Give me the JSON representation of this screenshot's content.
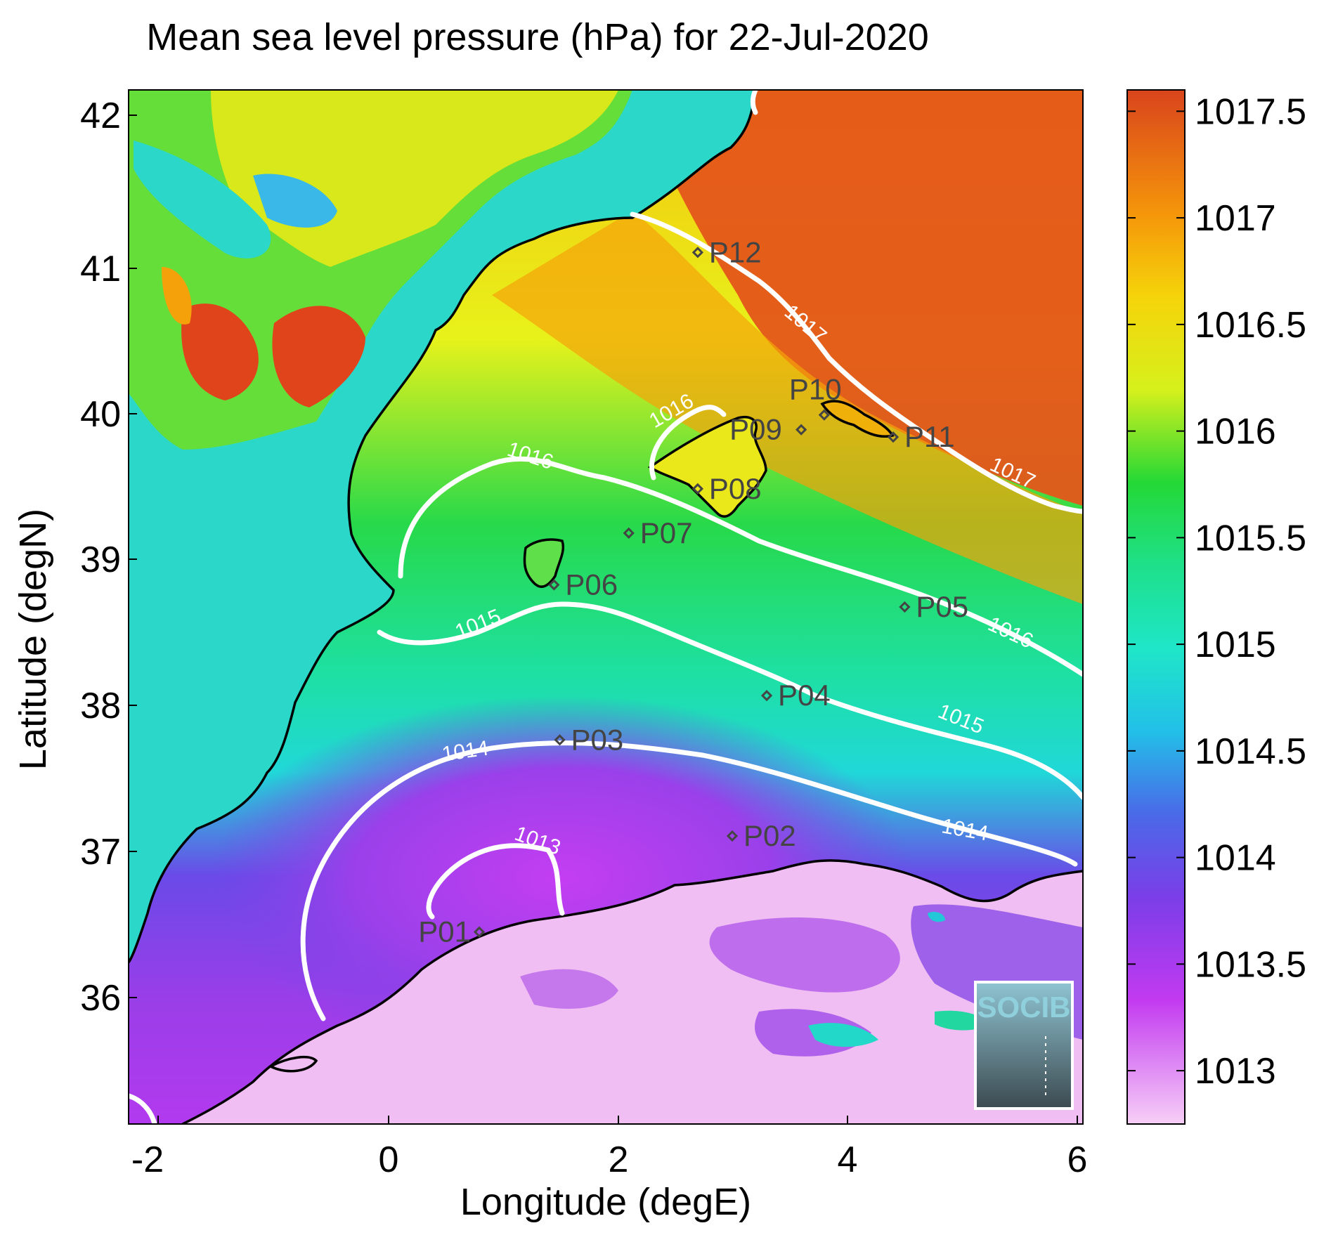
{
  "title": "Mean sea level pressure (hPa) for 22-Jul-2020",
  "xlabel": "Longitude (degE)",
  "ylabel": "Latitude (degN)",
  "x_ticks": [
    "-2",
    "0",
    "2",
    "4",
    "6"
  ],
  "y_ticks": [
    "36",
    "37",
    "38",
    "39",
    "40",
    "41",
    "42"
  ],
  "colorbar_ticks": [
    "1013",
    "1013.5",
    "1014",
    "1014.5",
    "1015",
    "1015.5",
    "1016",
    "1016.5",
    "1017",
    "1017.5"
  ],
  "colorbar_colors": [
    "#f5c4f5",
    "#c23af0",
    "#7a3ee8",
    "#3b8ee8",
    "#1fe0d8",
    "#1ee0a0",
    "#27d94a",
    "#e8f21a",
    "#f5a20a",
    "#e04a1a"
  ],
  "contour_labels": [
    "1013",
    "1014",
    "1014",
    "1015",
    "1015",
    "1016",
    "1016",
    "1016",
    "1017",
    "1017"
  ],
  "stations": [
    {
      "id": "P01",
      "lon": 0.8,
      "lat": 36.5
    },
    {
      "id": "P02",
      "lon": 3.0,
      "lat": 37.15
    },
    {
      "id": "P03",
      "lon": 1.5,
      "lat": 37.8
    },
    {
      "id": "P04",
      "lon": 3.3,
      "lat": 38.1
    },
    {
      "id": "P05",
      "lon": 4.5,
      "lat": 38.7
    },
    {
      "id": "P06",
      "lon": 1.45,
      "lat": 38.85
    },
    {
      "id": "P07",
      "lon": 2.1,
      "lat": 39.2
    },
    {
      "id": "P08",
      "lon": 2.7,
      "lat": 39.5
    },
    {
      "id": "P09",
      "lon": 3.6,
      "lat": 39.9
    },
    {
      "id": "P10",
      "lon": 3.8,
      "lat": 40.0
    },
    {
      "id": "P11",
      "lon": 4.4,
      "lat": 39.85
    },
    {
      "id": "P12",
      "lon": 2.7,
      "lat": 41.1
    }
  ],
  "logo_text": "SOCIB",
  "chart_data": {
    "type": "heatmap",
    "title": "Mean sea level pressure (hPa) for 22-Jul-2020",
    "xlabel": "Longitude (degE)",
    "ylabel": "Latitude (degN)",
    "xlim": [
      -2.2,
      6.1
    ],
    "ylim": [
      35.2,
      42.2
    ],
    "colorbar_range": [
      1012.75,
      1017.6
    ],
    "contour_levels": [
      1013,
      1014,
      1015,
      1016,
      1017
    ]
  }
}
